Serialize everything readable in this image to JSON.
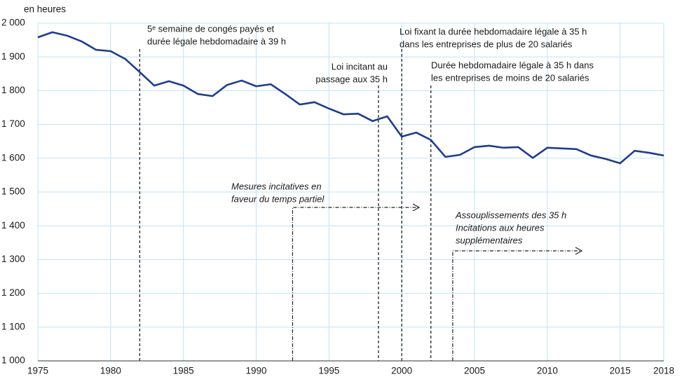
{
  "chart_data": {
    "type": "line",
    "y_label": "en heures",
    "x": [
      1975,
      1976,
      1977,
      1978,
      1979,
      1980,
      1981,
      1982,
      1983,
      1984,
      1985,
      1986,
      1987,
      1988,
      1989,
      1990,
      1991,
      1992,
      1993,
      1994,
      1995,
      1996,
      1997,
      1998,
      1999,
      2000,
      2001,
      2002,
      2003,
      2004,
      2005,
      2006,
      2007,
      2008,
      2009,
      2010,
      2011,
      2012,
      2013,
      2014,
      2015,
      2016,
      2017,
      2018
    ],
    "series": [
      {
        "color": "#1f3d8c",
        "values": [
          1958,
          1973,
          1963,
          1946,
          1921,
          1917,
          1894,
          1855,
          1815,
          1828,
          1815,
          1790,
          1784,
          1817,
          1830,
          1813,
          1819,
          1790,
          1759,
          1766,
          1747,
          1730,
          1732,
          1710,
          1724,
          1664,
          1676,
          1654,
          1604,
          1610,
          1633,
          1637,
          1631,
          1633,
          1601,
          1631,
          1629,
          1627,
          1608,
          1598,
          1585,
          1622,
          1616,
          1608
        ]
      }
    ],
    "xlim": [
      1975,
      2018
    ],
    "xticks": [
      1975,
      1980,
      1985,
      1990,
      1995,
      2000,
      2005,
      2010,
      2015,
      2018
    ],
    "ylim": [
      1000,
      2000
    ],
    "yticks": [
      {
        "value": 1000,
        "label": "1 000"
      },
      {
        "value": 1100,
        "label": "1 100"
      },
      {
        "value": 1200,
        "label": "1 200"
      },
      {
        "value": 1300,
        "label": "1 300"
      },
      {
        "value": 1400,
        "label": "1 400"
      },
      {
        "value": 1500,
        "label": "1 500"
      },
      {
        "value": 1600,
        "label": "1 600"
      },
      {
        "value": 1700,
        "label": "1 700"
      },
      {
        "value": 1800,
        "label": "1 800"
      },
      {
        "value": 1900,
        "label": "1 900"
      },
      {
        "value": 2000,
        "label": "2 000"
      }
    ],
    "grid": true,
    "annotations": [
      {
        "x": 1982,
        "lines": [
          "5ᵉ semaine de congés payés et",
          "durée légale hebdomadaire à 39 h"
        ]
      },
      {
        "x": 1998.4,
        "lines": [
          "Loi incitant au",
          "passage aux 35 h"
        ]
      },
      {
        "x": 2000,
        "lines": [
          "Loi fixant la durée hebdomadaire légale à 35 h",
          "dans les entreprises de plus de 20 salariés"
        ]
      },
      {
        "x": 2002,
        "lines": [
          "Durée hebdomadaire légale à 35 h dans",
          "les entreprises de moins de 20 salariés"
        ]
      },
      {
        "x": 1992.5,
        "lines": [
          "Mesures incitatives en",
          "faveur du temps partiel"
        ]
      },
      {
        "x": 2003.5,
        "lines": [
          "Assouplissements des 35 h",
          "Incitations aux heures",
          "supplémentaires"
        ]
      }
    ]
  }
}
